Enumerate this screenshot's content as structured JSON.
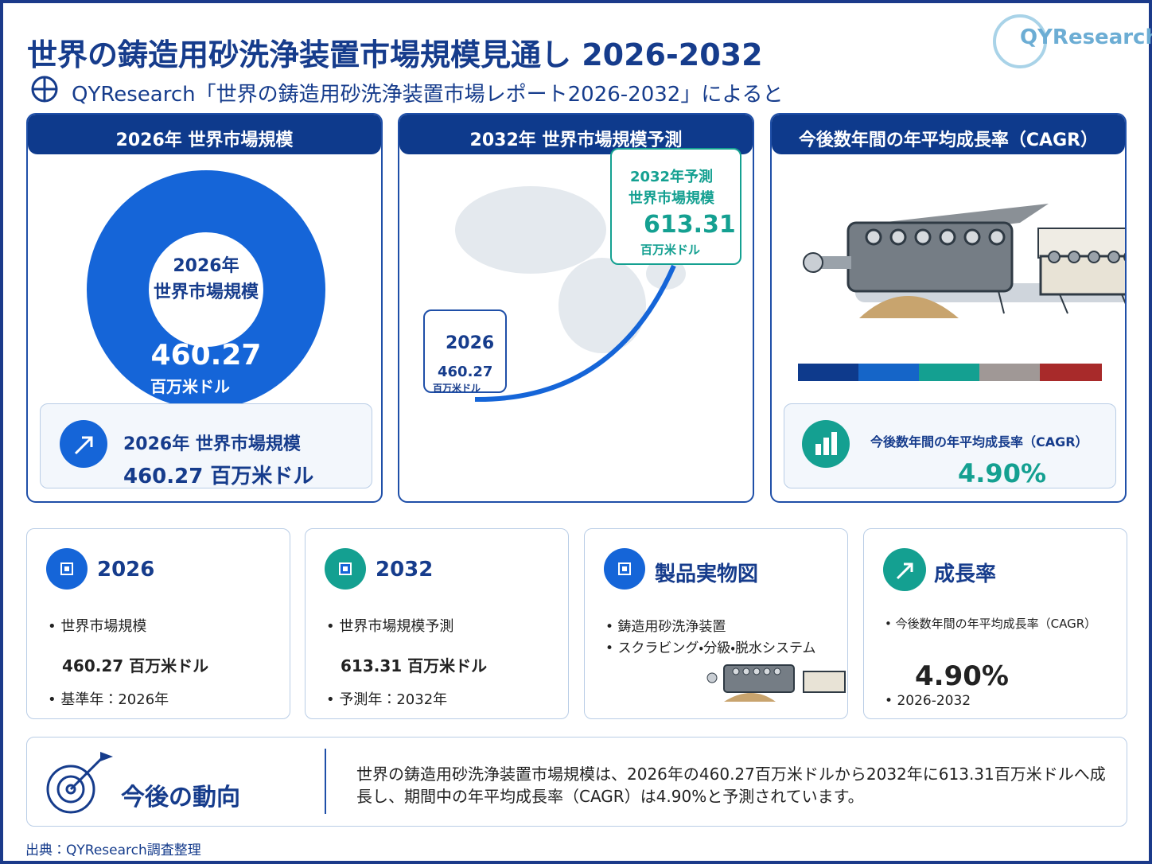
{
  "header": {
    "title": "世界の鋳造用砂洗浄装置市場規模見通し 2026-2032",
    "subtitle": "QYResearch「世界の鋳造用砂洗浄装置市場レポート2026-2032」によると",
    "logo": "QYResearch"
  },
  "panels": [
    {
      "header": "2026年 世界市場規模",
      "donut_year": "2026年",
      "donut_label": "世界市場規模",
      "donut_value": "460.27",
      "donut_unit": "百万米ドル",
      "box_title": "2026年 世界市場規模",
      "box_value": "460.27 百万米ドル"
    },
    {
      "header": "2032年 世界市場規模予測",
      "callout_title": "2032年予測",
      "callout_label": "世界市場規模",
      "callout_value": "613.31",
      "callout_unit": "百万米ドル",
      "start_year": "2026",
      "start_value": "460.27",
      "start_unit": "百万米ドル"
    },
    {
      "header": "今後数年間の年平均成長率（CAGR）",
      "box_title": "今後数年間の年平均成長率（CAGR）",
      "box_value": "4.90%"
    }
  ],
  "cards": [
    {
      "title": "2026",
      "lines": [
        "世界市場規模",
        "460.27 百万米ドル",
        "基準年：2026年"
      ]
    },
    {
      "title": "2032",
      "lines": [
        "世界市場規模予測",
        "613.31 百万米ドル",
        "予測年：2032年"
      ]
    },
    {
      "title": "製品実物図",
      "lines": [
        "鋳造用砂洗浄装置",
        "スクラビング・分級・脱水システム"
      ]
    },
    {
      "title": "成長率",
      "lines": [
        "今後数年間の年平均成長率（CAGR）",
        "4.90%",
        "2026-2032"
      ]
    }
  ],
  "outlook": {
    "title": "今後の動向",
    "text": "世界の鋳造用砂洗浄装置市場規模は、2026年の460.27百万米ドルから2032年に613.31百万米ドルへ成長し、期間中の年平均成長率（CAGR）は4.90%と予測されています。"
  },
  "footer": {
    "source": "出典：QYResearch調査整理"
  }
}
